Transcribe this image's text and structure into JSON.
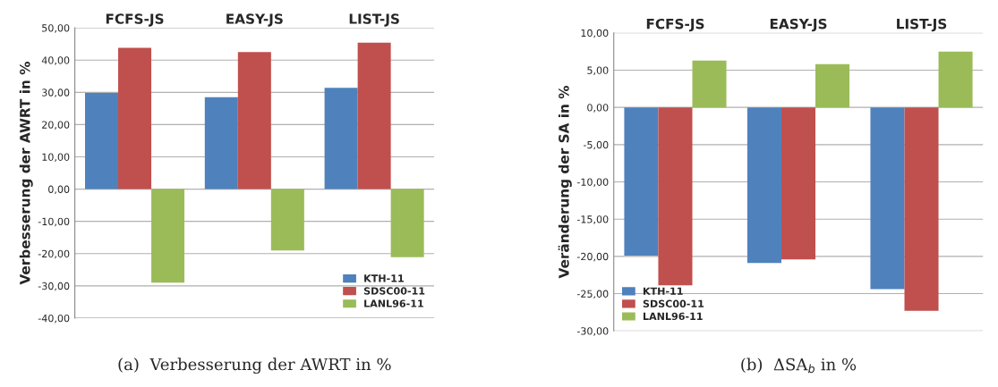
{
  "chart_data": [
    {
      "type": "bar",
      "categories": [
        "FCFS-JS",
        "EASY-JS",
        "LIST-JS"
      ],
      "ylabel": "Verbesserung der AWRT in %",
      "series": [
        {
          "name": "KTH-11",
          "color": "#4f81bd",
          "values": [
            29.8,
            28.5,
            31.4
          ]
        },
        {
          "name": "SDSC00-11",
          "color": "#c0504d",
          "values": [
            43.8,
            42.5,
            45.4
          ]
        },
        {
          "name": "LANL96-11",
          "color": "#9bbb59",
          "values": [
            -29.0,
            -19.0,
            -21.1
          ]
        }
      ],
      "ylim": [
        -40,
        50
      ],
      "yticks": [
        {
          "value": -40,
          "label": "-40,00"
        },
        {
          "value": -30,
          "label": "-30,00"
        },
        {
          "value": -20,
          "label": "-20,00"
        },
        {
          "value": -10,
          "label": "-10,00"
        },
        {
          "value": 0,
          "label": "0,00"
        },
        {
          "value": 10,
          "label": "10,00"
        },
        {
          "value": 20,
          "label": "20,00"
        },
        {
          "value": 30,
          "label": "30,00"
        },
        {
          "value": 40,
          "label": "40,00"
        },
        {
          "value": 50,
          "label": "50,00"
        }
      ],
      "grid": "y",
      "legend": "bottom right",
      "annotations": [
        "(a)  Verbesserung der AWRT in %"
      ]
    },
    {
      "type": "bar",
      "categories": [
        "FCFS-JS",
        "EASY-JS",
        "LIST-JS"
      ],
      "ylabel": "Veränderung der SA in %",
      "series": [
        {
          "name": "KTH-11",
          "color": "#4f81bd",
          "values": [
            -19.9,
            -20.9,
            -24.4
          ]
        },
        {
          "name": "SDSC00-11",
          "color": "#c0504d",
          "values": [
            -23.9,
            -20.4,
            -27.3
          ]
        },
        {
          "name": "LANL96-11",
          "color": "#9bbb59",
          "values": [
            6.3,
            5.8,
            7.5
          ]
        }
      ],
      "ylim": [
        -30,
        10
      ],
      "yticks": [
        {
          "value": -30,
          "label": "-30,00"
        },
        {
          "value": -25,
          "label": "-25,00"
        },
        {
          "value": -20,
          "label": "-20,00"
        },
        {
          "value": -15,
          "label": "-15,00"
        },
        {
          "value": -10,
          "label": "-10,00"
        },
        {
          "value": -5,
          "label": "-5,00"
        },
        {
          "value": 0,
          "label": "0,00"
        },
        {
          "value": 5,
          "label": "5,00"
        },
        {
          "value": 10,
          "label": "10,00"
        }
      ],
      "grid": "y",
      "legend": "bottom left",
      "annotations": [
        "(b)  ΔSA$_{b}$ in %"
      ]
    }
  ]
}
